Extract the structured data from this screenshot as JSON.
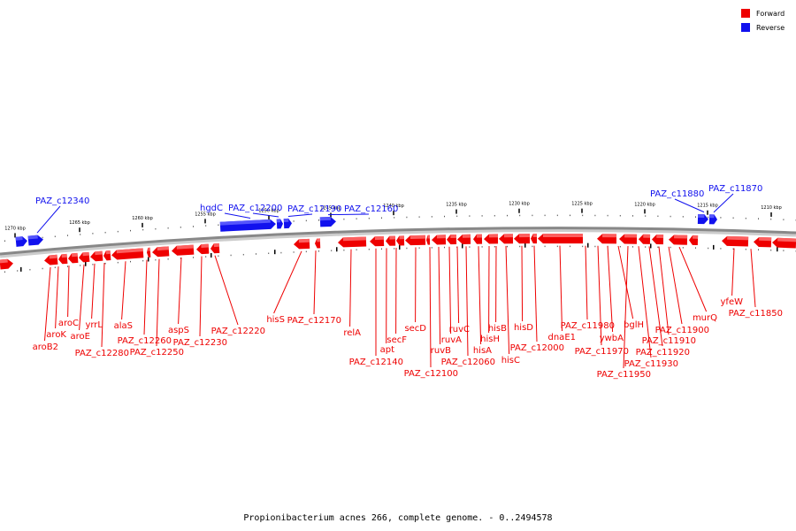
{
  "caption": "Propionibacterium acnes 266, complete genome. - 0..2494578",
  "legend": {
    "forward": {
      "label": "Forward",
      "color": "#ee0000"
    },
    "reverse": {
      "label": "Reverse",
      "color": "#1111ee"
    }
  },
  "scale_labels": [
    "1270 kbp",
    "1265 kbp",
    "1260 kbp",
    "1255 kbp",
    "1250 kbp",
    "1245 kbp",
    "1240 kbp",
    "1235 kbp",
    "1230 kbp",
    "1225 kbp",
    "1220 kbp",
    "1215 kbp",
    "1210 kbp"
  ],
  "reverse_labels": [
    "PAZ_c12340",
    "hgdC",
    "PAZ_c12200",
    "PAZ_c12190",
    "PAZ_c12160",
    "PAZ_c11880",
    "PAZ_c11870"
  ],
  "forward_labels": [
    "aroB2",
    "aroK",
    "aroC",
    "aroE",
    "yrrL",
    "PAZ_c12280",
    "alaS",
    "PAZ_c12260",
    "PAZ_c12250",
    "aspS",
    "PAZ_c12230",
    "PAZ_c12220",
    "hisS",
    "PAZ_c12170",
    "relA",
    "PAZ_c12140",
    "apt",
    "secF",
    "secD",
    "PAZ_c12100",
    "ruvB",
    "ruvA",
    "ruvC",
    "PAZ_c12060",
    "hisA",
    "hisH",
    "hisB",
    "hisC",
    "hisD",
    "PAZ_c12000",
    "dnaE1",
    "PAZ_c11980",
    "PAZ_c11970",
    "ywbA",
    "bglH",
    "PAZ_c11950",
    "PAZ_c11930",
    "PAZ_c11920",
    "PAZ_c11910",
    "PAZ_c11900",
    "murQ",
    "yfeW",
    "PAZ_c11850"
  ]
}
